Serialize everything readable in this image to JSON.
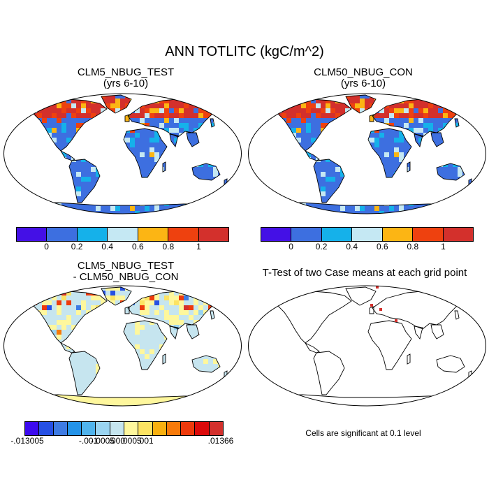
{
  "figure": {
    "title": "ANN TOTLITC (kgC/m^2)"
  },
  "panels": {
    "test": {
      "title1": "CLM5_NBUG_TEST",
      "title2": "(yrs 6-10)"
    },
    "control": {
      "title1": "CLM50_NBUG_CON",
      "title2": "(yrs 6-10)"
    },
    "difference": {
      "title1": "CLM5_NBUG_TEST",
      "title2": "- CLM50_NBUG_CON"
    },
    "ttest": {
      "title1": "T-Test of two Case means at each grid point",
      "note": "Cells are significant at 0.1 level"
    }
  },
  "colorbar_main": {
    "colors": [
      "#4410e6",
      "#3d6fe0",
      "#15b1ea",
      "#c5e8f3",
      "#fcb514",
      "#ee410f",
      "#d3302c"
    ],
    "labels": [
      "0",
      "0.2",
      "0.4",
      "0.6",
      "0.8",
      "1"
    ]
  },
  "colorbar_diff": {
    "colors": [
      "#3c0aef",
      "#2650e4",
      "#3e7be3",
      "#2493e8",
      "#50b3ec",
      "#9ad4f1",
      "#c6e5ef",
      "#fef79d",
      "#fce363",
      "#f8b010",
      "#f77a0a",
      "#ee3a0c",
      "#dc0a0a",
      "#d3302c"
    ],
    "labels": [
      "-.013005",
      "-.001",
      "-.0005",
      ".000",
      ".0005",
      ".001",
      ".01366"
    ]
  },
  "map_colors": {
    "ocean": "#ffffff",
    "coast": "#000000",
    "land_base": "#3d6fe0",
    "diff_base": "#c6e5ef",
    "significant": "#d3302c"
  }
}
